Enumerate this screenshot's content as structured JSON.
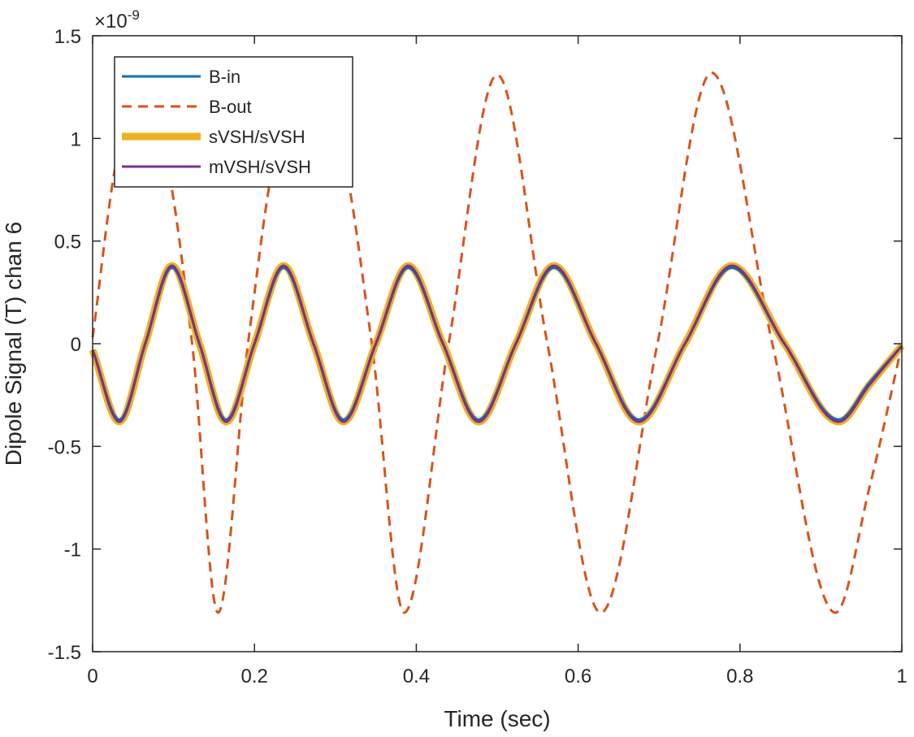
{
  "chart_data": {
    "type": "line",
    "title": "",
    "xlabel": "Time (sec)",
    "ylabel": "Dipole Signal (T) chan 6",
    "xlim": [
      0,
      1
    ],
    "ylim": [
      -1.5,
      1.5
    ],
    "y_exponent_label": "×10",
    "y_exponent_power": "-9",
    "x_ticks": [
      0,
      0.2,
      0.4,
      0.6,
      0.8,
      1
    ],
    "x_tick_labels": [
      "0",
      "0.2",
      "0.4",
      "0.6",
      "0.8",
      "1"
    ],
    "y_ticks": [
      -1.5,
      -1,
      -0.5,
      0,
      0.5,
      1,
      1.5
    ],
    "y_tick_labels": [
      "-1.5",
      "-1",
      "-0.5",
      "0",
      "0.5",
      "1",
      "1.5"
    ],
    "grid": false,
    "legend_position": "top-left",
    "series": [
      {
        "name": "B-in",
        "color": "#0072BD",
        "style": "solid",
        "x": [
          0,
          0.033,
          0.065,
          0.098,
          0.132,
          0.165,
          0.2,
          0.236,
          0.273,
          0.31,
          0.35,
          0.39,
          0.433,
          0.477,
          0.523,
          0.57,
          0.622,
          0.675,
          0.732,
          0.79,
          0.855,
          0.922,
          0.96,
          1.0
        ],
        "y": [
          -0.03,
          -0.37,
          0.0,
          0.37,
          0.0,
          -0.37,
          0.0,
          0.37,
          0.0,
          -0.37,
          0.0,
          0.37,
          0.0,
          -0.37,
          0.0,
          0.37,
          0.0,
          -0.37,
          0.0,
          0.37,
          0.0,
          -0.37,
          -0.19,
          -0.01
        ]
      },
      {
        "name": "B-out",
        "color": "#D95319",
        "style": "dashed",
        "x": [
          0,
          0.03,
          0.06,
          0.091,
          0.123,
          0.155,
          0.192,
          0.23,
          0.268,
          0.305,
          0.345,
          0.385,
          0.44,
          0.5,
          0.562,
          0.628,
          0.698,
          0.765,
          0.84,
          0.918,
          0.96,
          1.0
        ],
        "y": [
          0.03,
          0.9,
          1.31,
          0.9,
          0.0,
          -1.31,
          0.0,
          0.99,
          1.31,
          0.99,
          0.0,
          -1.31,
          0.0,
          1.31,
          0.0,
          -1.31,
          0.0,
          1.32,
          0.0,
          -1.31,
          -0.7,
          -0.01
        ]
      },
      {
        "name": "sVSH/sVSH",
        "color": "#EDB120",
        "style": "thick",
        "x": [
          0,
          0.033,
          0.065,
          0.098,
          0.132,
          0.165,
          0.2,
          0.236,
          0.273,
          0.31,
          0.35,
          0.39,
          0.433,
          0.477,
          0.523,
          0.57,
          0.622,
          0.675,
          0.732,
          0.79,
          0.855,
          0.922,
          0.96,
          1.0
        ],
        "y": [
          -0.03,
          -0.38,
          0.0,
          0.38,
          0.0,
          -0.38,
          0.0,
          0.38,
          0.0,
          -0.38,
          0.0,
          0.38,
          0.0,
          -0.38,
          0.0,
          0.38,
          0.0,
          -0.38,
          0.0,
          0.38,
          0.0,
          -0.38,
          -0.2,
          -0.01
        ]
      },
      {
        "name": "mVSH/sVSH",
        "color": "#7E2F8E",
        "style": "solid",
        "x": [
          0,
          0.033,
          0.065,
          0.098,
          0.132,
          0.165,
          0.2,
          0.236,
          0.273,
          0.31,
          0.35,
          0.39,
          0.433,
          0.477,
          0.523,
          0.57,
          0.622,
          0.675,
          0.732,
          0.79,
          0.855,
          0.922,
          0.96,
          1.0
        ],
        "y": [
          -0.03,
          -0.38,
          0.0,
          0.38,
          0.0,
          -0.38,
          0.0,
          0.38,
          0.0,
          -0.38,
          0.0,
          0.38,
          0.0,
          -0.38,
          0.0,
          0.38,
          0.0,
          -0.38,
          0.0,
          0.38,
          0.0,
          -0.38,
          -0.2,
          -0.01
        ]
      }
    ]
  }
}
